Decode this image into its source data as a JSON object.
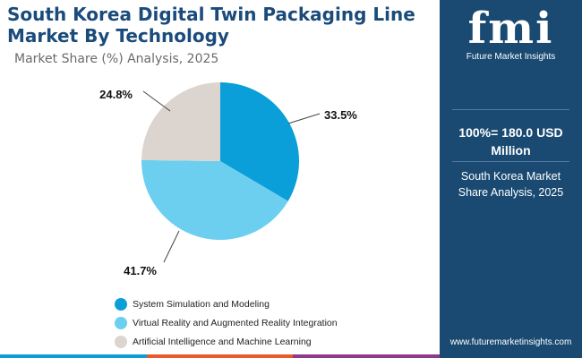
{
  "header": {
    "title": "South Korea Digital Twin Packaging Line Market By Technology",
    "subtitle": "Market Share (%) Analysis, 2025"
  },
  "chart_data": {
    "type": "pie",
    "title": "South Korea Digital Twin Packaging Line Market By Technology",
    "subtitle": "Market Share (%) Analysis, 2025",
    "slices": [
      {
        "name": "System Simulation and Modeling",
        "value": 33.5,
        "label": "33.5%",
        "color": "#0a9fd8"
      },
      {
        "name": "Virtual Reality and Augmented Reality Integration",
        "value": 41.7,
        "label": "41.7%",
        "color": "#6ccff0"
      },
      {
        "name": "Artificial Intelligence and Machine Learning",
        "value": 24.8,
        "label": "24.8%",
        "color": "#dcd4ce"
      }
    ],
    "legend_position": "bottom"
  },
  "sidebar": {
    "logo_text": "fmi",
    "logo_subtitle": "Future Market Insights",
    "total": "100%= 180.0 USD Million",
    "description": "South Korea Market Share Analysis, 2025",
    "url": "www.futuremarketinsights.com",
    "background_color": "#1a4a72"
  },
  "bottom_bar_colors": [
    "#0a9fd8",
    "#e85a2b",
    "#8e3a8c"
  ]
}
